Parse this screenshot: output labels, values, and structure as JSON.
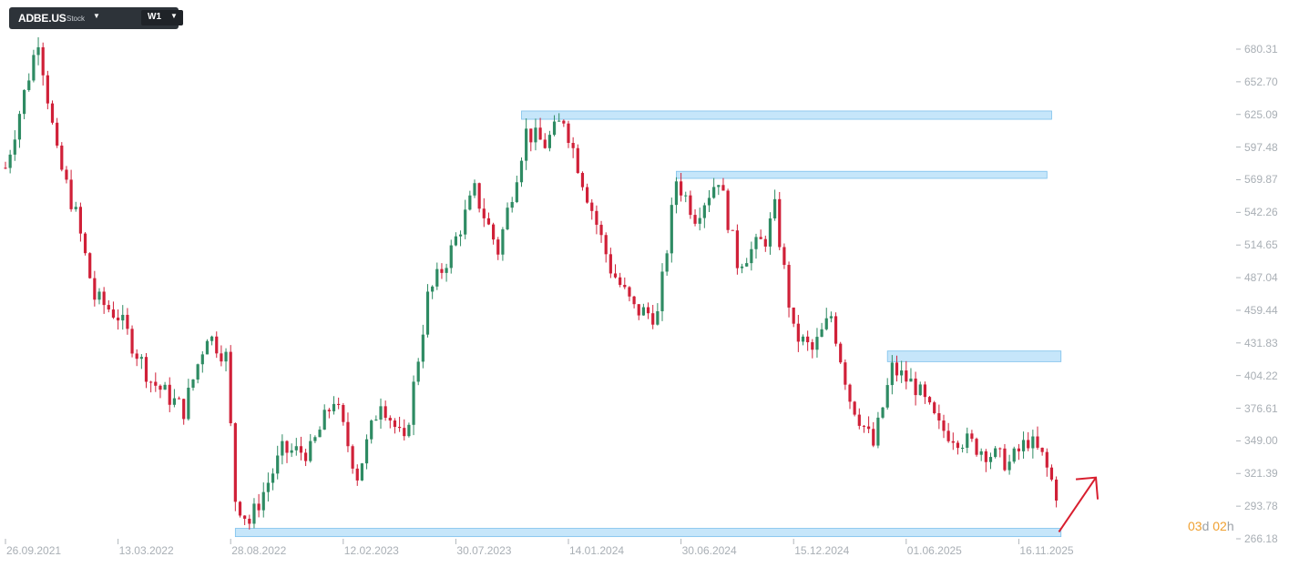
{
  "header": {
    "symbol": "ADBE.US",
    "type": "Stock",
    "timeframe": "W1"
  },
  "countdown": {
    "days": "03",
    "day_unit": "d",
    "hours": "02",
    "hour_unit": "h"
  },
  "colors": {
    "up": "#2e8b63",
    "down": "#d02038",
    "zone": "#c6e6fa",
    "zone_border": "#7cc0ec",
    "arrow": "#d81e2e",
    "axis_text": "#a9afb5"
  },
  "icons": {
    "symbol_dropdown": "caret-down-icon",
    "timeframe_dropdown": "caret-down-icon"
  },
  "chart_data": {
    "type": "candlestick",
    "y_ticks": [
      "680.31",
      "652.70",
      "625.09",
      "597.48",
      "569.87",
      "542.26",
      "514.65",
      "487.04",
      "459.44",
      "431.83",
      "404.22",
      "376.61",
      "349.00",
      "321.39",
      "293.78",
      "266.18"
    ],
    "x_ticks": [
      "26.09.2021",
      "13.03.2022",
      "28.08.2022",
      "12.02.2023",
      "30.07.2023",
      "14.01.2024",
      "30.06.2024",
      "15.12.2024",
      "01.06.2025",
      "16.11.2025"
    ],
    "ylim": [
      266.18,
      690
    ],
    "x_range": [
      "2021-09-26",
      "2026-02-01"
    ],
    "anchors": [
      [
        "2021-09-26",
        580
      ],
      [
        "2021-11-14",
        690
      ],
      [
        "2021-12-12",
        590
      ],
      [
        "2022-01-09",
        540
      ],
      [
        "2022-02-06",
        470
      ],
      [
        "2022-03-13",
        455
      ],
      [
        "2022-05-01",
        400
      ],
      [
        "2022-06-19",
        375
      ],
      [
        "2022-07-24",
        440
      ],
      [
        "2022-08-21",
        420
      ],
      [
        "2022-09-04",
        300
      ],
      [
        "2022-09-25",
        280
      ],
      [
        "2022-11-13",
        340
      ],
      [
        "2022-12-25",
        340
      ],
      [
        "2023-01-29",
        385
      ],
      [
        "2023-03-05",
        320
      ],
      [
        "2023-04-09",
        385
      ],
      [
        "2023-05-14",
        345
      ],
      [
        "2023-06-18",
        470
      ],
      [
        "2023-07-23",
        510
      ],
      [
        "2023-08-27",
        560
      ],
      [
        "2023-10-01",
        510
      ],
      [
        "2023-11-12",
        610
      ],
      [
        "2023-12-10",
        600
      ],
      [
        "2024-01-07",
        622
      ],
      [
        "2024-02-04",
        570
      ],
      [
        "2024-03-17",
        495
      ],
      [
        "2024-04-21",
        460
      ],
      [
        "2024-05-26",
        455
      ],
      [
        "2024-06-23",
        570
      ],
      [
        "2024-07-21",
        540
      ],
      [
        "2024-08-25",
        572
      ],
      [
        "2024-09-22",
        500
      ],
      [
        "2024-11-03",
        520
      ],
      [
        "2024-11-17",
        545
      ],
      [
        "2024-12-15",
        440
      ],
      [
        "2025-01-12",
        425
      ],
      [
        "2025-02-09",
        455
      ],
      [
        "2025-03-09",
        385
      ],
      [
        "2025-04-13",
        345
      ],
      [
        "2025-05-11",
        410
      ],
      [
        "2025-06-15",
        395
      ],
      [
        "2025-07-20",
        360
      ],
      [
        "2025-08-24",
        350
      ],
      [
        "2025-09-28",
        340
      ],
      [
        "2025-11-02",
        330
      ],
      [
        "2025-11-30",
        350
      ],
      [
        "2025-12-21",
        335
      ],
      [
        "2026-01-11",
        305
      ]
    ],
    "zones": [
      {
        "from": "2023-11-05",
        "to": "2026-01-04",
        "low": 621,
        "high": 628
      },
      {
        "from": "2024-06-23",
        "to": "2025-12-28",
        "low": 571,
        "high": 577
      },
      {
        "from": "2025-05-04",
        "to": "2026-01-18",
        "low": 416,
        "high": 425
      },
      {
        "from": "2022-09-04",
        "to": "2026-01-18",
        "low": 268,
        "high": 275
      }
    ],
    "arrow": {
      "from": [
        "2026-01-04",
        272
      ],
      "to": [
        "2026-02-01",
        318
      ]
    },
    "grid": false
  }
}
